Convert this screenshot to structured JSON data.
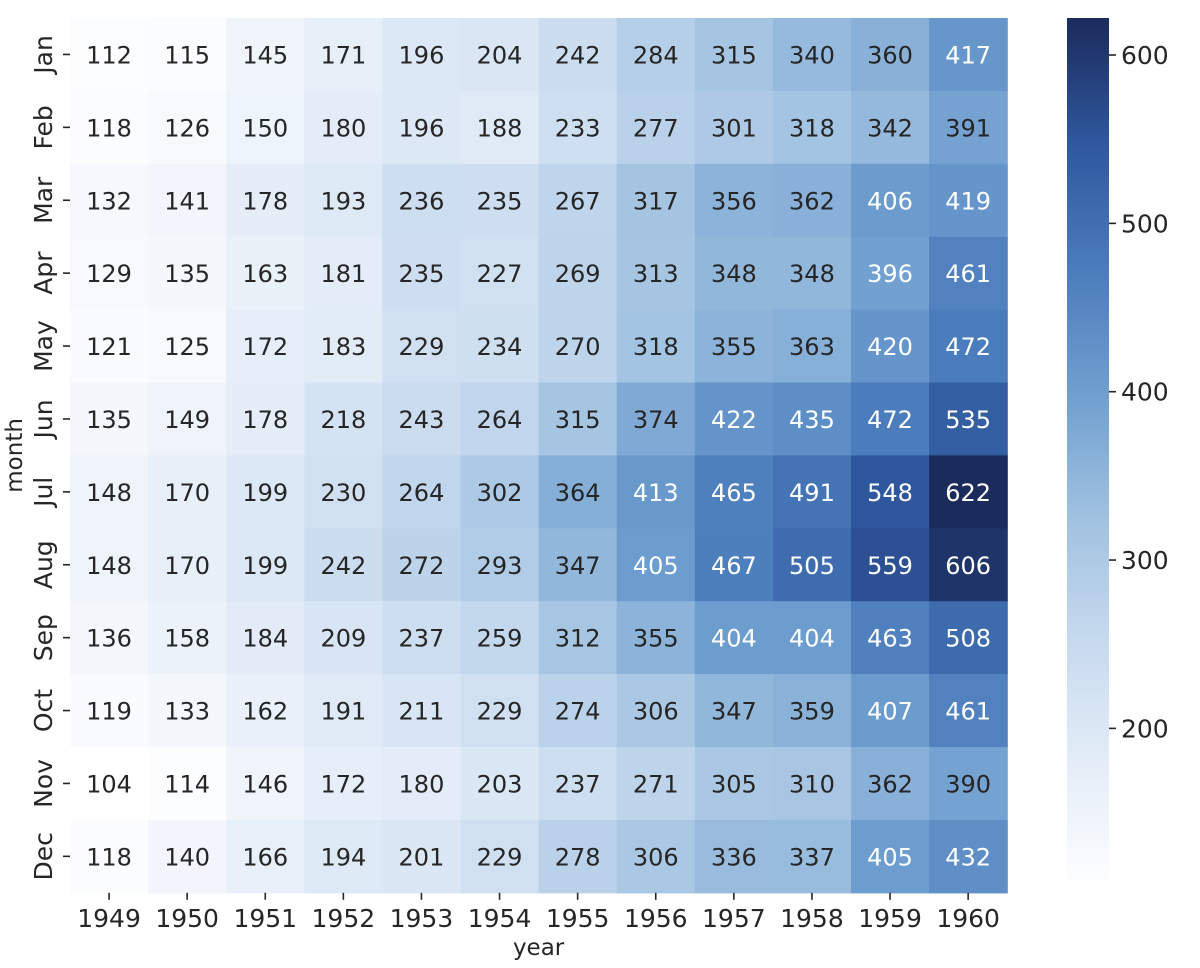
{
  "chart_data": {
    "type": "heatmap",
    "xlabel": "year",
    "ylabel": "month",
    "x_categories": [
      "1949",
      "1950",
      "1951",
      "1952",
      "1953",
      "1954",
      "1955",
      "1956",
      "1957",
      "1958",
      "1959",
      "1960"
    ],
    "y_categories": [
      "Jan",
      "Feb",
      "Mar",
      "Apr",
      "May",
      "Jun",
      "Jul",
      "Aug",
      "Sep",
      "Oct",
      "Nov",
      "Dec"
    ],
    "values": [
      [
        112,
        115,
        145,
        171,
        196,
        204,
        242,
        284,
        315,
        340,
        360,
        417
      ],
      [
        118,
        126,
        150,
        180,
        196,
        188,
        233,
        277,
        301,
        318,
        342,
        391
      ],
      [
        132,
        141,
        178,
        193,
        236,
        235,
        267,
        317,
        356,
        362,
        406,
        419
      ],
      [
        129,
        135,
        163,
        181,
        235,
        227,
        269,
        313,
        348,
        348,
        396,
        461
      ],
      [
        121,
        125,
        172,
        183,
        229,
        234,
        270,
        318,
        355,
        363,
        420,
        472
      ],
      [
        135,
        149,
        178,
        218,
        243,
        264,
        315,
        374,
        422,
        435,
        472,
        535
      ],
      [
        148,
        170,
        199,
        230,
        264,
        302,
        364,
        413,
        465,
        491,
        548,
        622
      ],
      [
        148,
        170,
        199,
        242,
        272,
        293,
        347,
        405,
        467,
        505,
        559,
        606
      ],
      [
        136,
        158,
        184,
        209,
        237,
        259,
        312,
        355,
        404,
        404,
        463,
        508
      ],
      [
        119,
        133,
        162,
        191,
        211,
        229,
        274,
        306,
        347,
        359,
        407,
        461
      ],
      [
        104,
        114,
        146,
        172,
        180,
        203,
        237,
        271,
        305,
        310,
        362,
        390
      ],
      [
        118,
        140,
        166,
        194,
        201,
        229,
        278,
        306,
        336,
        337,
        405,
        432
      ]
    ],
    "colorbar": {
      "min": 104,
      "max": 622,
      "ticks": [
        200,
        300,
        400,
        500,
        600
      ],
      "tick_labels": [
        "200",
        "300",
        "400",
        "500",
        "600"
      ]
    },
    "colormap": [
      "#ffffff",
      "#e4edf8",
      "#c7daee",
      "#9fc1e0",
      "#6f9ecf",
      "#4a7cbb",
      "#2f579d",
      "#1b2b5c"
    ],
    "annotation_colors": {
      "dark": "#262626",
      "light": "#ffffff"
    }
  }
}
